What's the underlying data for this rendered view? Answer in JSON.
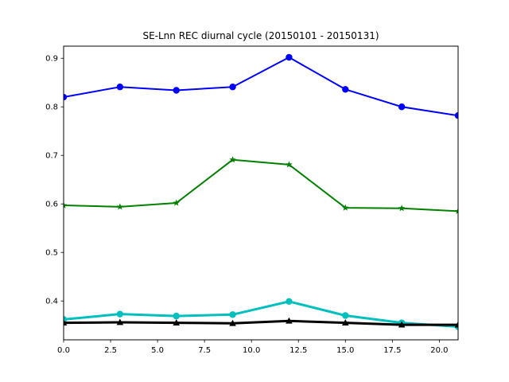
{
  "chart_data": {
    "type": "line",
    "title": "SE-Lnn REC diurnal cycle (20150101 - 20150131)",
    "xlabel": "",
    "ylabel": "",
    "xlim": [
      0,
      21
    ],
    "ylim": [
      0.32,
      0.925
    ],
    "xticks": [
      0.0,
      2.5,
      5.0,
      7.5,
      10.0,
      12.5,
      15.0,
      17.5,
      20.0
    ],
    "xtick_labels": [
      "0.0",
      "2.5",
      "5.0",
      "7.5",
      "10.0",
      "12.5",
      "15.0",
      "17.5",
      "20.0"
    ],
    "yticks": [
      0.4,
      0.5,
      0.6,
      0.7,
      0.8,
      0.9
    ],
    "ytick_labels": [
      "0.4",
      "0.5",
      "0.6",
      "0.7",
      "0.8",
      "0.9"
    ],
    "grid": false,
    "x": [
      0,
      3,
      6,
      9,
      12,
      15,
      18,
      21
    ],
    "series": [
      {
        "color": "#0000ff",
        "marker": "circle",
        "line_width": 2,
        "values": [
          0.82,
          0.841,
          0.834,
          0.841,
          0.902,
          0.836,
          0.8,
          0.782
        ]
      },
      {
        "color": "#008000",
        "marker": "star",
        "line_width": 2,
        "values": [
          0.597,
          0.594,
          0.602,
          0.691,
          0.681,
          0.592,
          0.591,
          0.585
        ]
      },
      {
        "color": "#00bfbf",
        "marker": "circle",
        "line_width": 3,
        "values": [
          0.362,
          0.373,
          0.369,
          0.372,
          0.399,
          0.37,
          0.355,
          0.347
        ]
      },
      {
        "color": "#000000",
        "marker": "triangle",
        "line_width": 3,
        "values": [
          0.355,
          0.356,
          0.355,
          0.354,
          0.359,
          0.355,
          0.351,
          0.351
        ]
      }
    ]
  }
}
